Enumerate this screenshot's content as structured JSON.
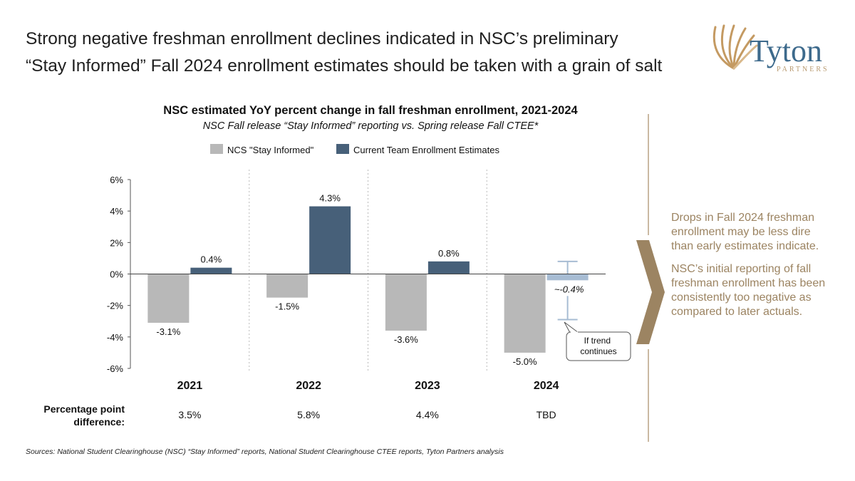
{
  "headline": {
    "line1": "Strong negative freshman enrollment declines indicated in NSC’s preliminary",
    "line2": "“Stay Informed” Fall 2024 enrollment estimates should be taken with a grain of salt"
  },
  "logo": {
    "name": "Tyton",
    "sub": "PARTNERS",
    "icon": "shell-fan-icon"
  },
  "colors": {
    "stay_informed": "#b8b8b8",
    "ctee": "#476079",
    "projected": "#a7bcd3",
    "accent": "#9c8462"
  },
  "chart_data": {
    "type": "bar",
    "title": "NSC estimated YoY percent change in fall freshman enrollment, 2021-2024",
    "subtitle": "NSC Fall release “Stay Informed” reporting vs. Spring release Fall CTEE*",
    "categories": [
      "2021",
      "2022",
      "2023",
      "2024"
    ],
    "series": [
      {
        "name": "NCS \"Stay Informed\"",
        "values": [
          -3.1,
          -1.5,
          -3.6,
          -5.0
        ],
        "labels": [
          "-3.1%",
          "-1.5%",
          "-3.6%",
          "-5.0%"
        ]
      },
      {
        "name": "Current Team Enrollment Estimates",
        "values": [
          0.4,
          4.3,
          0.8,
          -0.4
        ],
        "labels": [
          "0.4%",
          "4.3%",
          "0.8%",
          "~-0.4%"
        ],
        "projected_index": 3
      }
    ],
    "error_bar": {
      "category": "2024",
      "low": -2.9,
      "high": 0.8
    },
    "annotation": "If trend continues",
    "yticks": [
      6,
      4,
      2,
      0,
      -2,
      -4,
      -6
    ],
    "ytick_labels": [
      "6%",
      "4%",
      "2%",
      "0%",
      "-2%",
      "-4%",
      "-6%"
    ],
    "ylim": [
      -6,
      6
    ],
    "legend_position": "top",
    "grid": false,
    "difference": {
      "label_line1": "Percentage point",
      "label_line2": "difference:",
      "values": [
        "3.5%",
        "5.8%",
        "4.4%",
        "TBD"
      ]
    }
  },
  "callout": {
    "p1": "Drops in Fall 2024 freshman enrollment may be less dire than early estimates indicate.",
    "p2": "NSC’s initial reporting of fall freshman enrollment has been consistently too negative as compared to later actuals."
  },
  "sources": "Sources: National Student Clearinghouse (NSC) “Stay Informed” reports, National Student Clearinghouse CTEE reports, Tyton Partners analysis"
}
